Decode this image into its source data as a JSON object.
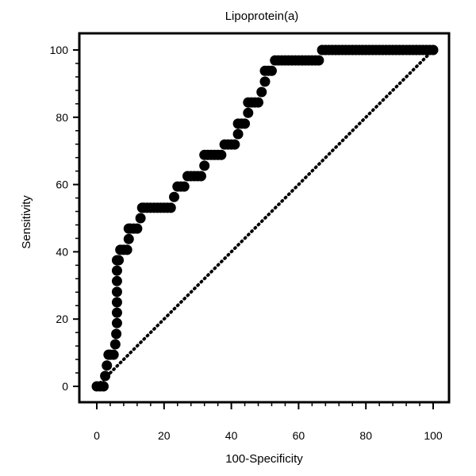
{
  "chart_data": {
    "type": "scatter",
    "title": "Lipoprotein(a)",
    "xlabel": "100-Specificity",
    "ylabel": "Sensitivity",
    "xlim": [
      0,
      100
    ],
    "ylim": [
      0,
      100
    ],
    "xticks": [
      0,
      20,
      40,
      60,
      80,
      100
    ],
    "yticks": [
      0,
      20,
      40,
      60,
      80,
      100
    ],
    "minor_ticks_per_interval": 5,
    "grid": false,
    "colors": {
      "roc_curve": "#000000",
      "reference_line": "#000000",
      "frame": "#000000"
    },
    "series": [
      {
        "values": [
          [
            0,
            0
          ],
          [
            1,
            0
          ],
          [
            2,
            0
          ],
          [
            2.5,
            3.1
          ],
          [
            3,
            6.2
          ],
          [
            3.5,
            9.4
          ],
          [
            4,
            9.4
          ],
          [
            5,
            9.4
          ],
          [
            5.5,
            12.5
          ],
          [
            5.8,
            15.6
          ],
          [
            6,
            18.8
          ],
          [
            6,
            21.9
          ],
          [
            6,
            25
          ],
          [
            6,
            28.1
          ],
          [
            6,
            31.3
          ],
          [
            6,
            34.4
          ],
          [
            6,
            37.5
          ],
          [
            6.5,
            37.5
          ],
          [
            7,
            40.6
          ],
          [
            8,
            40.6
          ],
          [
            9,
            40.6
          ],
          [
            9.5,
            43.8
          ],
          [
            9.5,
            46.9
          ],
          [
            10,
            46.9
          ],
          [
            11,
            46.9
          ],
          [
            12,
            46.9
          ],
          [
            13,
            50
          ],
          [
            13.5,
            53.1
          ],
          [
            14,
            53.1
          ],
          [
            15,
            53.1
          ],
          [
            16,
            53.1
          ],
          [
            17,
            53.1
          ],
          [
            18,
            53.1
          ],
          [
            19,
            53.1
          ],
          [
            20,
            53.1
          ],
          [
            21,
            53.1
          ],
          [
            22,
            53.1
          ],
          [
            23,
            56.3
          ],
          [
            24,
            59.4
          ],
          [
            25,
            59.4
          ],
          [
            26,
            59.4
          ],
          [
            27,
            62.5
          ],
          [
            28,
            62.5
          ],
          [
            29,
            62.5
          ],
          [
            30,
            62.5
          ],
          [
            31,
            62.5
          ],
          [
            32,
            65.6
          ],
          [
            32,
            68.8
          ],
          [
            33,
            68.8
          ],
          [
            34,
            68.8
          ],
          [
            35,
            68.8
          ],
          [
            36,
            68.8
          ],
          [
            37,
            68.8
          ],
          [
            38,
            71.9
          ],
          [
            39,
            71.9
          ],
          [
            40,
            71.9
          ],
          [
            41,
            71.9
          ],
          [
            42,
            75
          ],
          [
            42,
            78.1
          ],
          [
            43,
            78.1
          ],
          [
            44,
            78.1
          ],
          [
            45,
            81.3
          ],
          [
            45,
            84.4
          ],
          [
            46,
            84.4
          ],
          [
            47,
            84.4
          ],
          [
            48,
            84.4
          ],
          [
            49,
            87.5
          ],
          [
            50,
            90.6
          ],
          [
            50,
            93.8
          ],
          [
            51,
            93.8
          ],
          [
            52,
            93.8
          ],
          [
            53,
            96.9
          ],
          [
            54,
            96.9
          ],
          [
            55,
            96.9
          ],
          [
            56,
            96.9
          ],
          [
            57,
            96.9
          ],
          [
            58,
            96.9
          ],
          [
            59,
            96.9
          ],
          [
            60,
            96.9
          ],
          [
            61,
            96.9
          ],
          [
            62,
            96.9
          ],
          [
            63,
            96.9
          ],
          [
            64,
            96.9
          ],
          [
            65,
            96.9
          ],
          [
            66,
            96.9
          ],
          [
            67,
            100
          ],
          [
            68,
            100
          ],
          [
            69,
            100
          ],
          [
            70,
            100
          ],
          [
            71,
            100
          ],
          [
            72,
            100
          ],
          [
            73,
            100
          ],
          [
            74,
            100
          ],
          [
            75,
            100
          ],
          [
            76,
            100
          ],
          [
            77,
            100
          ],
          [
            78,
            100
          ],
          [
            79,
            100
          ],
          [
            80,
            100
          ],
          [
            81,
            100
          ],
          [
            82,
            100
          ],
          [
            83,
            100
          ],
          [
            84,
            100
          ],
          [
            85,
            100
          ],
          [
            86,
            100
          ],
          [
            87,
            100
          ],
          [
            88,
            100
          ],
          [
            89,
            100
          ],
          [
            90,
            100
          ],
          [
            91,
            100
          ],
          [
            92,
            100
          ],
          [
            93,
            100
          ],
          [
            94,
            100
          ],
          [
            95,
            100
          ],
          [
            96,
            100
          ],
          [
            97,
            100
          ],
          [
            98,
            100
          ],
          [
            99,
            100
          ],
          [
            100,
            100
          ]
        ],
        "style": "markers"
      },
      {
        "values": [
          [
            0,
            0
          ],
          [
            100,
            100
          ]
        ],
        "style": "dotted-line"
      }
    ]
  }
}
